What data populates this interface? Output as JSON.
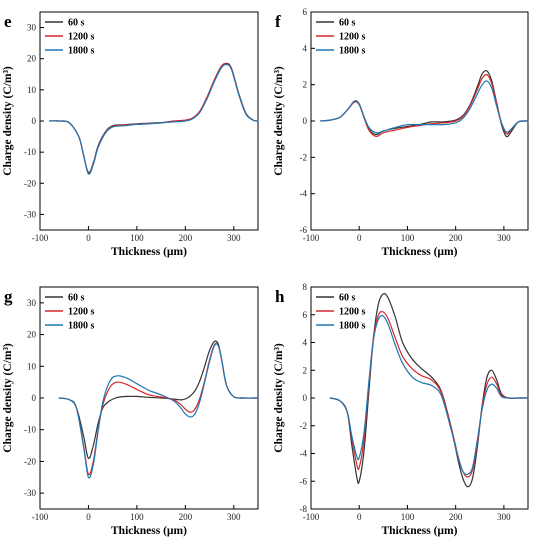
{
  "chart_data": [
    {
      "panel": "e",
      "type": "line",
      "xlabel": "Thickness (µm)",
      "ylabel": "Charge density (C/m³)",
      "xlim": [
        -100,
        350
      ],
      "ylim": [
        -35,
        35
      ],
      "xticks": [
        -100,
        0,
        100,
        200,
        300
      ],
      "yticks": [
        -30,
        -20,
        -10,
        0,
        10,
        20,
        30
      ],
      "legend_position": "top-left",
      "series": [
        {
          "name": "60 s",
          "color": "#333333",
          "x": [
            -80,
            -60,
            -40,
            -20,
            -10,
            0,
            10,
            20,
            35,
            50,
            75,
            100,
            125,
            150,
            175,
            200,
            215,
            230,
            245,
            260,
            275,
            285,
            295,
            310,
            325,
            340,
            350
          ],
          "y": [
            0,
            0,
            -0.5,
            -5,
            -11,
            -16.5,
            -13.5,
            -8,
            -3.5,
            -1.5,
            -1.2,
            -0.9,
            -0.7,
            -0.5,
            -0.2,
            0.1,
            0.8,
            3,
            7.5,
            13,
            17.5,
            18.5,
            17,
            9,
            2.5,
            0.3,
            0
          ]
        },
        {
          "name": "1200 s",
          "color": "#d62728",
          "x": [
            -80,
            -60,
            -40,
            -20,
            -10,
            0,
            10,
            20,
            35,
            50,
            75,
            100,
            125,
            150,
            175,
            200,
            215,
            230,
            245,
            260,
            275,
            285,
            295,
            310,
            325,
            340,
            350
          ],
          "y": [
            0,
            0,
            -0.5,
            -5,
            -11,
            -16.8,
            -13.8,
            -8.3,
            -3.7,
            -1.7,
            -1.3,
            -1,
            -0.8,
            -0.6,
            0,
            0.3,
            1,
            3.2,
            7.8,
            13.3,
            17.8,
            18.3,
            16.8,
            8.8,
            2.3,
            0.3,
            0
          ]
        },
        {
          "name": "1800 s",
          "color": "#1f77b4",
          "x": [
            -80,
            -60,
            -40,
            -20,
            -10,
            0,
            10,
            20,
            35,
            50,
            75,
            100,
            125,
            150,
            175,
            200,
            215,
            230,
            245,
            260,
            275,
            285,
            295,
            310,
            325,
            340,
            350
          ],
          "y": [
            0,
            0,
            -0.5,
            -5,
            -11,
            -17,
            -14,
            -8.5,
            -3.9,
            -1.9,
            -1.5,
            -1.1,
            -0.9,
            -0.6,
            -0.3,
            0,
            0.7,
            2.8,
            7.2,
            12.7,
            17.2,
            18.1,
            16.6,
            8.6,
            2.2,
            0.3,
            0
          ]
        }
      ]
    },
    {
      "panel": "f",
      "type": "line",
      "xlabel": "Thickness (µm)",
      "ylabel": "Charge density (C/m³)",
      "xlim": [
        -100,
        350
      ],
      "ylim": [
        -6,
        6
      ],
      "xticks": [
        -100,
        0,
        100,
        200,
        300
      ],
      "yticks": [
        -6,
        -4,
        -2,
        0,
        2,
        4,
        6
      ],
      "legend_position": "top-left",
      "series": [
        {
          "name": "60 s",
          "color": "#333333",
          "x": [
            -80,
            -60,
            -40,
            -25,
            -10,
            0,
            10,
            20,
            35,
            50,
            75,
            100,
            125,
            150,
            175,
            200,
            215,
            230,
            245,
            255,
            265,
            275,
            285,
            295,
            305,
            315,
            330,
            350
          ],
          "y": [
            0,
            0.05,
            0.2,
            0.6,
            1.05,
            0.9,
            0.2,
            -0.45,
            -0.75,
            -0.55,
            -0.4,
            -0.3,
            -0.2,
            -0.05,
            -0.05,
            0.05,
            0.3,
            0.9,
            1.9,
            2.6,
            2.75,
            2.2,
            1,
            -0.2,
            -0.85,
            -0.6,
            -0.05,
            0
          ]
        },
        {
          "name": "1200 s",
          "color": "#d62728",
          "x": [
            -80,
            -60,
            -40,
            -25,
            -10,
            0,
            10,
            20,
            35,
            50,
            75,
            100,
            125,
            150,
            175,
            200,
            215,
            230,
            245,
            255,
            265,
            275,
            285,
            295,
            305,
            315,
            330,
            350
          ],
          "y": [
            0,
            0.05,
            0.2,
            0.6,
            1.05,
            0.9,
            0.2,
            -0.5,
            -0.85,
            -0.65,
            -0.5,
            -0.35,
            -0.25,
            -0.15,
            -0.1,
            0,
            0.25,
            0.85,
            1.75,
            2.35,
            2.55,
            2.05,
            0.95,
            -0.1,
            -0.7,
            -0.5,
            -0.05,
            0
          ]
        },
        {
          "name": "1800 s",
          "color": "#1f77b4",
          "x": [
            -80,
            -60,
            -40,
            -25,
            -10,
            0,
            10,
            20,
            35,
            50,
            75,
            100,
            125,
            150,
            175,
            200,
            215,
            230,
            245,
            255,
            265,
            275,
            285,
            295,
            305,
            315,
            330,
            350
          ],
          "y": [
            0,
            0.05,
            0.2,
            0.6,
            1.1,
            0.95,
            0.25,
            -0.35,
            -0.65,
            -0.55,
            -0.35,
            -0.2,
            -0.2,
            -0.2,
            -0.2,
            -0.1,
            0.15,
            0.7,
            1.5,
            2,
            2.2,
            1.8,
            0.8,
            -0.1,
            -0.6,
            -0.45,
            -0.05,
            0
          ]
        }
      ]
    },
    {
      "panel": "g",
      "type": "line",
      "xlabel": "Thickness (µm)",
      "ylabel": "Charge density (C/m³)",
      "xlim": [
        -100,
        350
      ],
      "ylim": [
        -35,
        35
      ],
      "xticks": [
        -100,
        0,
        100,
        200,
        300
      ],
      "yticks": [
        -30,
        -20,
        -10,
        0,
        10,
        20,
        30
      ],
      "legend_position": "top-left",
      "series": [
        {
          "name": "60 s",
          "color": "#333333",
          "x": [
            -60,
            -40,
            -25,
            -10,
            0,
            10,
            20,
            30,
            45,
            60,
            80,
            100,
            125,
            150,
            175,
            190,
            200,
            210,
            220,
            230,
            240,
            250,
            260,
            268,
            275,
            285,
            300,
            320,
            350
          ],
          "y": [
            0,
            -0.5,
            -3,
            -12,
            -19,
            -15,
            -8,
            -3,
            -0.8,
            0.2,
            0.5,
            0.5,
            0.2,
            0,
            -0.3,
            -0.6,
            -0.3,
            0.6,
            2.3,
            5.5,
            10,
            15,
            17.8,
            17,
            12,
            4,
            0.4,
            0,
            0
          ]
        },
        {
          "name": "1200 s",
          "color": "#d62728",
          "x": [
            -60,
            -40,
            -25,
            -10,
            0,
            10,
            20,
            30,
            45,
            60,
            80,
            100,
            125,
            150,
            175,
            190,
            200,
            210,
            220,
            230,
            240,
            250,
            260,
            268,
            275,
            285,
            300,
            320,
            350
          ],
          "y": [
            0,
            -0.5,
            -3,
            -15,
            -24,
            -20,
            -10,
            -2,
            3.5,
            5,
            4.2,
            2.7,
            1,
            0.3,
            -0.5,
            -2,
            -3.5,
            -4.5,
            -3.5,
            0,
            5.5,
            12,
            16.8,
            16.5,
            12,
            4,
            0.4,
            0,
            0
          ]
        },
        {
          "name": "1800 s",
          "color": "#1f77b4",
          "x": [
            -60,
            -40,
            -25,
            -10,
            0,
            10,
            20,
            30,
            45,
            60,
            80,
            100,
            125,
            150,
            175,
            190,
            200,
            210,
            220,
            230,
            240,
            250,
            260,
            268,
            275,
            285,
            300,
            320,
            350
          ],
          "y": [
            0,
            -0.5,
            -3,
            -15.5,
            -25,
            -21,
            -10.5,
            -1,
            5.5,
            7,
            6.2,
            4.5,
            2.4,
            1,
            -0.8,
            -3,
            -5,
            -6,
            -5,
            -1,
            5,
            11.5,
            16.5,
            16.5,
            12,
            4,
            0.4,
            0,
            0
          ]
        }
      ]
    },
    {
      "panel": "h",
      "type": "line",
      "xlabel": "Thickness (µm)",
      "ylabel": "Charge density (C/m³)",
      "xlim": [
        -100,
        350
      ],
      "ylim": [
        -8,
        8
      ],
      "xticks": [
        -100,
        0,
        100,
        200,
        300
      ],
      "yticks": [
        -8,
        -6,
        -4,
        -2,
        0,
        2,
        4,
        6,
        8
      ],
      "legend_position": "top-left",
      "series": [
        {
          "name": "60 s",
          "color": "#333333",
          "x": [
            -60,
            -40,
            -25,
            -15,
            -5,
            0,
            10,
            20,
            30,
            40,
            50,
            60,
            75,
            90,
            110,
            130,
            150,
            170,
            190,
            205,
            215,
            225,
            235,
            245,
            255,
            265,
            275,
            285,
            295,
            310,
            330,
            350
          ],
          "y": [
            0,
            -0.2,
            -1,
            -3.5,
            -5.7,
            -6,
            -3.8,
            0.5,
            4.5,
            6.8,
            7.5,
            7.2,
            5.8,
            4,
            2.8,
            2.1,
            1.5,
            0.5,
            -2,
            -4.5,
            -5.8,
            -6.4,
            -5.8,
            -3.5,
            -0.5,
            1.5,
            2,
            1.3,
            0.3,
            0,
            0,
            0
          ]
        },
        {
          "name": "1200 s",
          "color": "#d62728",
          "x": [
            -60,
            -40,
            -25,
            -15,
            -5,
            0,
            10,
            20,
            30,
            40,
            50,
            60,
            75,
            90,
            110,
            130,
            150,
            170,
            190,
            205,
            215,
            225,
            235,
            245,
            255,
            265,
            275,
            285,
            295,
            310,
            330,
            350
          ],
          "y": [
            0,
            -0.2,
            -1,
            -3,
            -4.8,
            -5,
            -3,
            1,
            4.5,
            6,
            6.2,
            5.7,
            4.3,
            3,
            2.1,
            1.6,
            1.3,
            0.4,
            -2,
            -4.2,
            -5.3,
            -5.7,
            -5.2,
            -3.2,
            -0.6,
            1,
            1.5,
            1,
            0.2,
            0,
            0,
            0
          ]
        },
        {
          "name": "1800 s",
          "color": "#1f77b4",
          "x": [
            -60,
            -40,
            -25,
            -15,
            -5,
            0,
            10,
            20,
            30,
            40,
            50,
            60,
            75,
            90,
            110,
            130,
            150,
            170,
            190,
            205,
            215,
            225,
            235,
            245,
            255,
            265,
            275,
            285,
            295,
            310,
            330,
            350
          ],
          "y": [
            0,
            -0.2,
            -1,
            -2.8,
            -4.2,
            -4.3,
            -2.5,
            1.2,
            4.3,
            5.7,
            5.9,
            5.3,
            3.8,
            2.5,
            1.5,
            1.1,
            0.9,
            0.2,
            -2.2,
            -4.3,
            -5.3,
            -5.5,
            -5,
            -3,
            -0.8,
            0.6,
            1,
            0.7,
            0.1,
            0,
            0,
            0
          ]
        }
      ]
    }
  ]
}
